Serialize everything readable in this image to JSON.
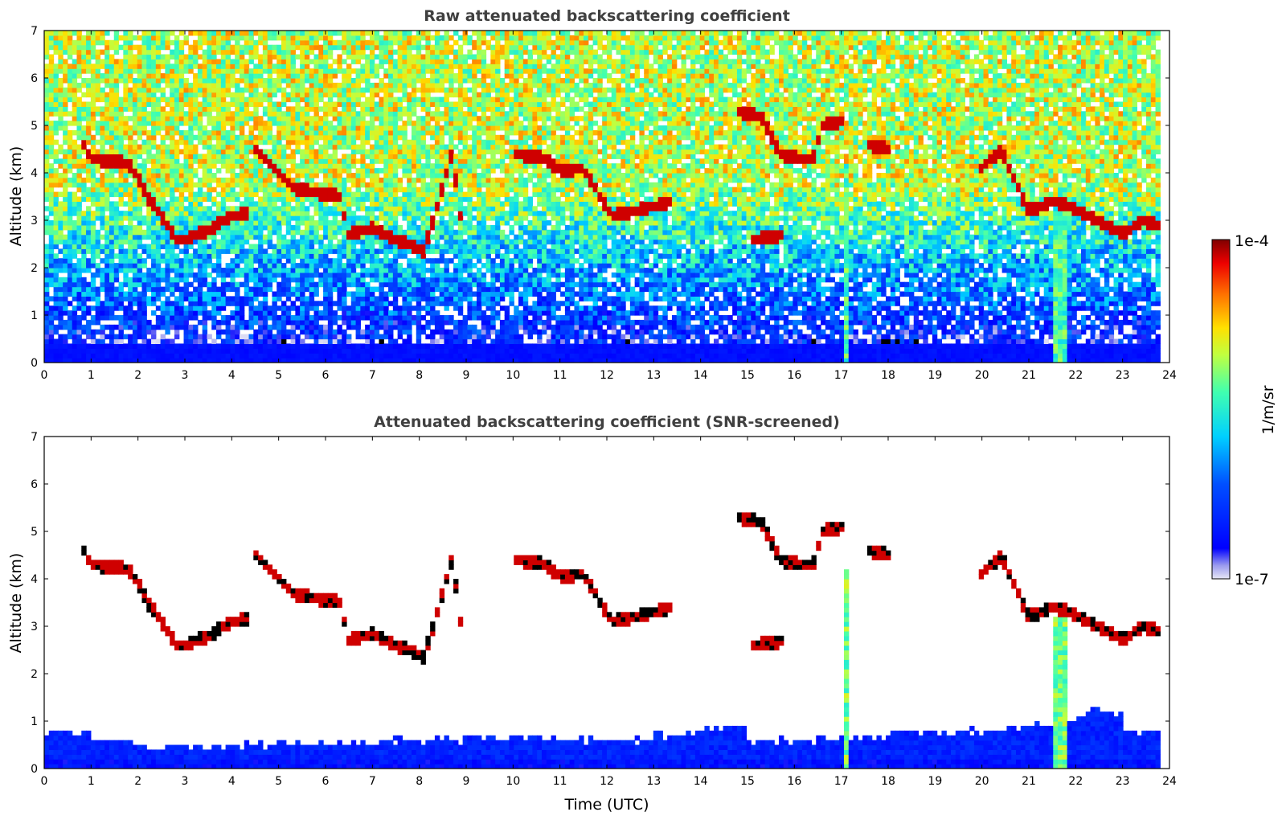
{
  "chart_data": [
    {
      "type": "heatmap",
      "title": "Raw attenuated backscattering coefficient",
      "xlabel": "",
      "ylabel": "Altitude (km)",
      "xlim": [
        0,
        24
      ],
      "ylim": [
        0,
        7
      ],
      "x_ticks": [
        "0",
        "1",
        "2",
        "3",
        "4",
        "5",
        "6",
        "7",
        "8",
        "9",
        "10",
        "11",
        "12",
        "13",
        "14",
        "15",
        "16",
        "17",
        "18",
        "19",
        "20",
        "21",
        "22",
        "23",
        "24"
      ],
      "y_ticks": [
        "0",
        "1",
        "2",
        "3",
        "4",
        "5",
        "6",
        "7"
      ],
      "data_end_hour": 23.8,
      "screened": false,
      "features": [
        {
          "name": "boundary-layer",
          "x": [
            0,
            23.8
          ],
          "y": [
            0,
            0.45
          ],
          "level": 0.12
        },
        {
          "name": "cloud-a",
          "points": [
            [
              0.8,
              4.7
            ],
            [
              0.9,
              4.5
            ],
            [
              1.0,
              4.3
            ],
            [
              1.8,
              4.2
            ],
            [
              2.0,
              3.9
            ],
            [
              2.2,
              3.5
            ],
            [
              2.5,
              3.1
            ],
            [
              2.8,
              2.6
            ],
            [
              3.0,
              2.6
            ],
            [
              3.5,
              2.8
            ],
            [
              4.0,
              3.1
            ],
            [
              4.4,
              3.15
            ]
          ],
          "level": 0.95
        },
        {
          "name": "cloud-b",
          "points": [
            [
              4.5,
              4.5
            ],
            [
              5.3,
              3.7
            ],
            [
              6.3,
              3.5
            ],
            [
              6.5,
              2.7
            ],
            [
              7.0,
              2.85
            ],
            [
              7.5,
              2.6
            ],
            [
              8.1,
              2.35
            ],
            [
              8.7,
              4.4
            ],
            [
              8.9,
              2.9
            ]
          ],
          "level": 0.95
        },
        {
          "name": "cloud-c",
          "points": [
            [
              10.0,
              4.4
            ],
            [
              10.6,
              4.35
            ],
            [
              11.0,
              4.05
            ],
            [
              11.5,
              4.1
            ],
            [
              12.1,
              3.1
            ],
            [
              12.6,
              3.2
            ],
            [
              13.0,
              3.3
            ],
            [
              13.4,
              3.4
            ]
          ],
          "level": 0.95
        },
        {
          "name": "cloud-d",
          "points": [
            [
              14.8,
              5.3
            ],
            [
              15.3,
              5.2
            ],
            [
              15.7,
              4.4
            ],
            [
              16.2,
              4.3
            ],
            [
              16.4,
              4.3
            ],
            [
              16.6,
              5.0
            ],
            [
              17.1,
              5.1
            ]
          ],
          "level": 0.95
        },
        {
          "name": "cloud-e",
          "points": [
            [
              15.1,
              2.6
            ],
            [
              15.8,
              2.7
            ],
            [
              17.6,
              4.6
            ],
            [
              18.0,
              4.5
            ],
            [
              19.9,
              4.0
            ],
            [
              20.4,
              4.5
            ],
            [
              21.0,
              3.2
            ],
            [
              21.5,
              3.4
            ],
            [
              21.9,
              3.3
            ],
            [
              22.5,
              3.0
            ],
            [
              23.0,
              2.7
            ],
            [
              23.4,
              3.0
            ],
            [
              23.8,
              2.9
            ]
          ],
          "level": 0.95
        },
        {
          "name": "precip-17",
          "x": [
            17.05,
            17.15
          ],
          "y": [
            0,
            4.2
          ],
          "level": 0.55
        },
        {
          "name": "precip-21.7",
          "x": [
            21.55,
            21.85
          ],
          "y": [
            0,
            3.2
          ],
          "level": 0.5
        }
      ]
    },
    {
      "type": "heatmap",
      "title": "Attenuated backscattering coefficient (SNR-screened)",
      "xlabel": "Time (UTC)",
      "ylabel": "Altitude (km)",
      "xlim": [
        0,
        24
      ],
      "ylim": [
        0,
        7
      ],
      "x_ticks": [
        "0",
        "1",
        "2",
        "3",
        "4",
        "5",
        "6",
        "7",
        "8",
        "9",
        "10",
        "11",
        "12",
        "13",
        "14",
        "15",
        "16",
        "17",
        "18",
        "19",
        "20",
        "21",
        "22",
        "23",
        "24"
      ],
      "y_ticks": [
        "0",
        "1",
        "2",
        "3",
        "4",
        "5",
        "6",
        "7"
      ],
      "data_end_hour": 23.8,
      "screened": true,
      "boundary_layer_top_km": [
        0.75,
        0.6,
        0.5,
        0.45,
        0.5,
        0.55,
        0.55,
        0.6,
        0.6,
        0.65,
        0.65,
        0.6,
        0.6,
        0.7,
        0.85,
        0.6,
        0.6,
        0.65,
        0.8,
        0.8,
        0.85,
        0.9,
        1.2,
        0.8
      ]
    }
  ],
  "colorbar": {
    "label": "1/m/sr",
    "min_label": "1e-7",
    "max_label": "1e-4",
    "colormap": "jet"
  }
}
